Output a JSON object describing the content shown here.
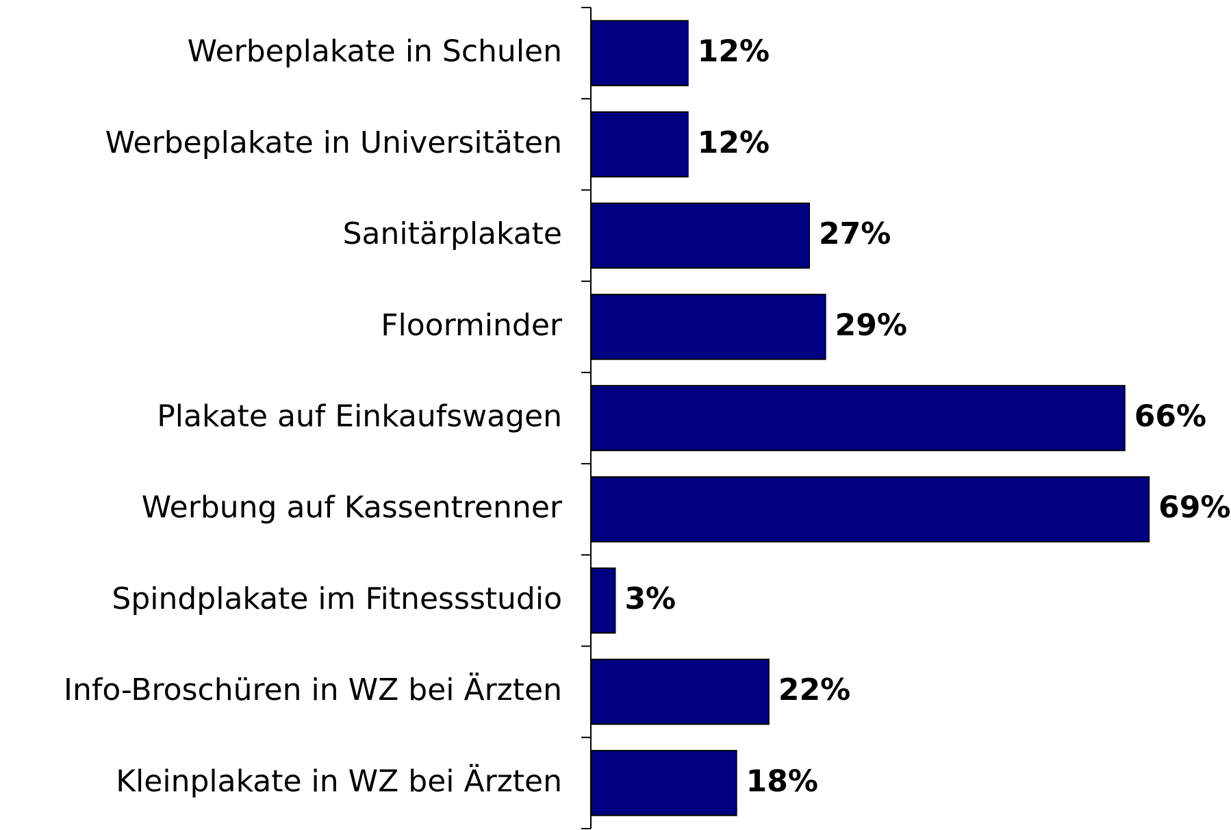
{
  "chart_data": {
    "type": "bar",
    "orientation": "horizontal",
    "categories": [
      "Werbeplakate in Schulen",
      "Werbeplakate in Universitäten",
      "Sanitärplakate",
      "Floorminder",
      "Plakate auf Einkaufswagen",
      "Werbung auf Kassentrenner",
      "Spindplakate im Fitnessstudio",
      "Info-Broschüren in WZ bei Ärzten",
      "Kleinplakate in WZ bei Ärzten"
    ],
    "values": [
      12,
      12,
      27,
      29,
      66,
      69,
      3,
      22,
      18
    ],
    "value_labels": [
      "12%",
      "12%",
      "27%",
      "29%",
      "66%",
      "69%",
      "3%",
      "22%",
      "18%"
    ],
    "color": "#000080",
    "xlim": [
      0,
      70
    ]
  }
}
